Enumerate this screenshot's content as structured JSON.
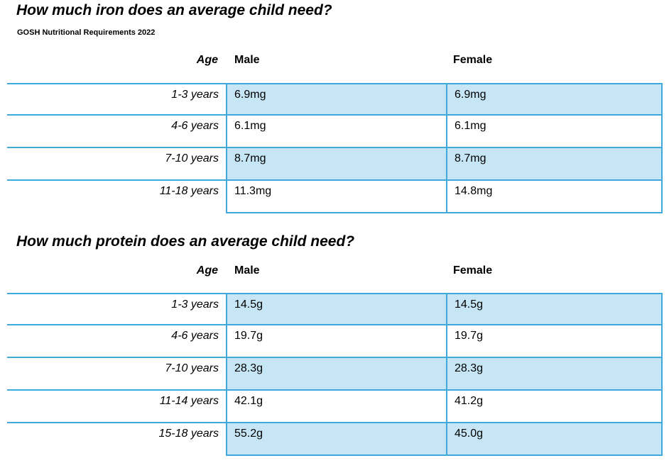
{
  "iron": {
    "title": "How much iron does an average child need?",
    "subtitle": "GOSH Nutritional Requirements 2022",
    "header": {
      "age": "Age",
      "male": "Male",
      "female": "Female"
    },
    "rows": [
      {
        "age": "1-3 years",
        "male": "6.9mg",
        "female": "6.9mg"
      },
      {
        "age": "4-6 years",
        "male": "6.1mg",
        "female": "6.1mg"
      },
      {
        "age": "7-10 years",
        "male": "8.7mg",
        "female": "8.7mg"
      },
      {
        "age": "11-18 years",
        "male": "11.3mg",
        "female": "14.8mg"
      }
    ]
  },
  "protein": {
    "title": "How much protein does an average child need?",
    "header": {
      "age": "Age",
      "male": "Male",
      "female": "Female"
    },
    "rows": [
      {
        "age": "1-3 years",
        "male": "14.5g",
        "female": "14.5g"
      },
      {
        "age": "4-6 years",
        "male": "19.7g",
        "female": "19.7g"
      },
      {
        "age": "7-10 years",
        "male": "28.3g",
        "female": "28.3g"
      },
      {
        "age": "11-14 years",
        "male": "42.1g",
        "female": "41.2g"
      },
      {
        "age": "15-18 years",
        "male": "55.2g",
        "female": "45.0g"
      }
    ]
  },
  "colors": {
    "table_border": "#41a8db",
    "band_fill": "#c7e6f5",
    "text": "#000000"
  }
}
